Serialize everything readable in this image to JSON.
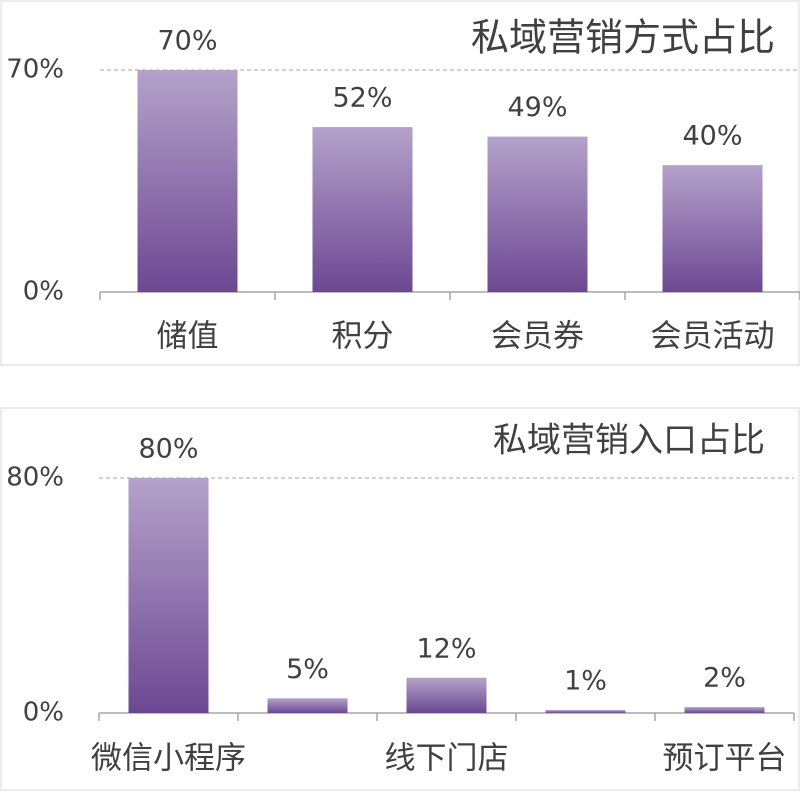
{
  "chart_data": [
    {
      "type": "bar",
      "title": "私域营销方式占比",
      "categories": [
        "储值",
        "积分",
        "会员券",
        "会员活动"
      ],
      "values": [
        70,
        52,
        49,
        40
      ],
      "value_labels": [
        "70%",
        "52%",
        "49%",
        "40%"
      ],
      "ylim": [
        0,
        70
      ],
      "yticks": [
        {
          "value": 0,
          "label": "0%"
        },
        {
          "value": 70,
          "label": "70%"
        }
      ],
      "grid": true
    },
    {
      "type": "bar",
      "title": "私域营销入口占比",
      "categories": [
        "微信小程序",
        null,
        "线下门店",
        null,
        "预订平台"
      ],
      "values": [
        80,
        5,
        12,
        1,
        2
      ],
      "value_labels": [
        "80%",
        "5%",
        "12%",
        "1%",
        "2%"
      ],
      "ylim": [
        0,
        80
      ],
      "yticks": [
        {
          "value": 0,
          "label": "0%"
        },
        {
          "value": 80,
          "label": "80%"
        }
      ],
      "grid": true
    }
  ]
}
